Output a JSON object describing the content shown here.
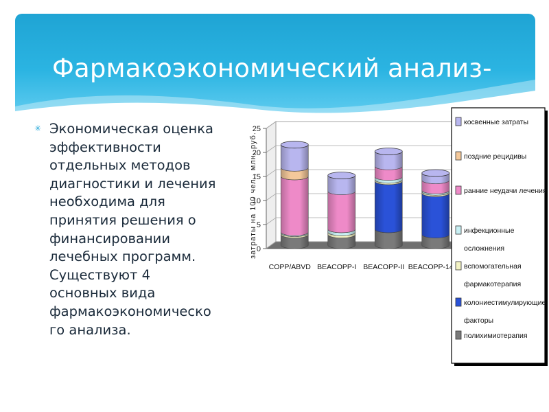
{
  "slide": {
    "title": "Фармакоэкономический анализ-",
    "bullet_icon": "asterisk-icon",
    "bullet_text": "Экономическая оценка\nэффективности\nотдельных методов\nдиагностики и лечения\nнеобходима для\nпринятия решения о\nфинансировании\nлечебных программ.\nСуществуют 4\nосновных вида\nфармакоэкономическо\nго анализа."
  },
  "chart_data": {
    "type": "stacked-bar-3d",
    "title": "",
    "xlabel": "",
    "ylabel": "затраты на 100 чел., млн. руб.",
    "ylim": [
      0,
      25
    ],
    "yticks": [
      0,
      5,
      10,
      15,
      20,
      25
    ],
    "grid": true,
    "legend_position": "right",
    "categories": [
      "COPP/ABVD",
      "BEACOPP-I",
      "BEACOPP-II",
      "BEACOPP-14"
    ],
    "series": [
      {
        "name": "полихимиотерапия",
        "color": "#7a7a7a",
        "values": [
          2.2,
          2.2,
          3.3,
          2.2
        ]
      },
      {
        "name": "колониестимулирующие факторы",
        "color": "#2a52d8",
        "values": [
          0,
          0,
          10.0,
          8.6
        ]
      },
      {
        "name": "вспомогательная фармакотерапия",
        "color": "#f4f3c4",
        "values": [
          0.3,
          0.5,
          0.3,
          0.3
        ]
      },
      {
        "name": "инфекционные осложнения",
        "color": "#c8f0f4",
        "values": [
          0.2,
          0.6,
          0.6,
          0.3
        ]
      },
      {
        "name": "ранние неудачи лечения",
        "color": "#ee8ac8",
        "values": [
          11.6,
          7.9,
          2.2,
          2.1
        ]
      },
      {
        "name": "поздние рецидивы",
        "color": "#f4c89a",
        "values": [
          1.8,
          0,
          0,
          0
        ]
      },
      {
        "name": "косвенные затраты",
        "color": "#b8b6ef",
        "values": [
          4.8,
          3.3,
          3.1,
          1.5
        ]
      }
    ]
  }
}
